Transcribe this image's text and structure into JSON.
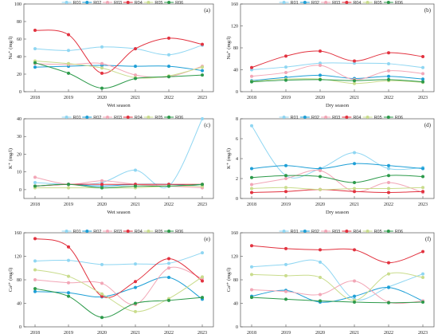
{
  "colors": {
    "R01": "#8fd6f2",
    "R02": "#1e9fd6",
    "R03": "#f2a6b6",
    "R04": "#e2323f",
    "R05": "#c9dc8c",
    "R06": "#2c9a4a"
  },
  "chart_data": [
    {
      "panel": "(a)",
      "type": "line",
      "x": [
        2018,
        2019,
        2020,
        2021,
        2022,
        2023
      ],
      "xlabel": "Wet season",
      "ylabel": "Na⁺ (mg/l)",
      "ylim": [
        0,
        100
      ],
      "yticks": [
        0,
        20,
        40,
        60,
        80,
        100
      ],
      "series": [
        {
          "name": "R01",
          "values": [
            49,
            47,
            51,
            49,
            42,
            53
          ]
        },
        {
          "name": "R02",
          "values": [
            28,
            29,
            30,
            29,
            29,
            24
          ]
        },
        {
          "name": "R03",
          "values": [
            32,
            31,
            32,
            19,
            17,
            29
          ]
        },
        {
          "name": "R04",
          "values": [
            70,
            65,
            21,
            49,
            61,
            54
          ]
        },
        {
          "name": "R05",
          "values": [
            35,
            32,
            27,
            16,
            18,
            28
          ]
        },
        {
          "name": "R06",
          "values": [
            33,
            21,
            4,
            15,
            17,
            19
          ]
        }
      ]
    },
    {
      "panel": "(b)",
      "type": "line",
      "x": [
        2018,
        2019,
        2020,
        2021,
        2022,
        2023
      ],
      "xlabel": "Dry season",
      "ylabel": "Na⁺ (mg/l)",
      "ylim": [
        0,
        160
      ],
      "yticks": [
        0,
        40,
        80,
        120,
        160
      ],
      "series": [
        {
          "name": "R01",
          "values": [
            40,
            45,
            52,
            52,
            51,
            44
          ]
        },
        {
          "name": "R02",
          "values": [
            20,
            26,
            30,
            24,
            28,
            23
          ]
        },
        {
          "name": "R03",
          "values": [
            28,
            35,
            48,
            22,
            38,
            33
          ]
        },
        {
          "name": "R04",
          "values": [
            44,
            65,
            74,
            56,
            71,
            64
          ]
        },
        {
          "name": "R05",
          "values": [
            19,
            23,
            23,
            15,
            20,
            17
          ]
        },
        {
          "name": "R06",
          "values": [
            18,
            21,
            22,
            20,
            22,
            18
          ]
        }
      ]
    },
    {
      "panel": "(c)",
      "type": "line",
      "x": [
        2018,
        2019,
        2020,
        2021,
        2022,
        2023
      ],
      "xlabel": "Wet season",
      "ylabel": "K⁺ (mg/l)",
      "ylim": [
        -5,
        40
      ],
      "yticks": [
        0,
        10,
        20,
        30,
        40
      ],
      "series": [
        {
          "name": "R01",
          "values": [
            4,
            3,
            4,
            11,
            2,
            40
          ]
        },
        {
          "name": "R02",
          "values": [
            2,
            3,
            2,
            3,
            3,
            2
          ]
        },
        {
          "name": "R03",
          "values": [
            7,
            3,
            5,
            3,
            2,
            1
          ]
        },
        {
          "name": "R04",
          "values": [
            2,
            3,
            3,
            3,
            3,
            3
          ]
        },
        {
          "name": "R05",
          "values": [
            1,
            1,
            1,
            1,
            2,
            2
          ]
        },
        {
          "name": "R06",
          "values": [
            2,
            3,
            1,
            2,
            2,
            3
          ]
        }
      ]
    },
    {
      "panel": "(d)",
      "type": "line",
      "x": [
        2018,
        2019,
        2020,
        2021,
        2022,
        2023
      ],
      "xlabel": "Dry season",
      "ylabel": "K⁺ (mg/l)",
      "ylim": [
        0,
        8
      ],
      "yticks": [
        0,
        2,
        4,
        6,
        8
      ],
      "series": [
        {
          "name": "R01",
          "values": [
            7.3,
            2.3,
            3.0,
            4.6,
            3.0,
            3.1
          ]
        },
        {
          "name": "R02",
          "values": [
            3.0,
            3.3,
            3.0,
            3.5,
            3.3,
            3.0
          ]
        },
        {
          "name": "R03",
          "values": [
            1.4,
            2.0,
            2.8,
            0.7,
            1.6,
            0.6
          ]
        },
        {
          "name": "R04",
          "values": [
            0.6,
            0.7,
            0.9,
            0.7,
            0.6,
            0.7
          ]
        },
        {
          "name": "R05",
          "values": [
            1.0,
            1.1,
            0.9,
            1.0,
            1.0,
            1.1
          ]
        },
        {
          "name": "R06",
          "values": [
            2.1,
            2.3,
            2.2,
            1.6,
            2.3,
            2.2
          ]
        }
      ]
    },
    {
      "panel": "(e)",
      "type": "line",
      "x": [
        2018,
        2019,
        2020,
        2021,
        2022,
        2023
      ],
      "xlabel": "Wet season",
      "ylabel": "Ca²⁺ (mg/l)",
      "ylim": [
        0,
        160
      ],
      "yticks": [
        0,
        40,
        80,
        120,
        160
      ],
      "series": [
        {
          "name": "R01",
          "values": [
            112,
            113,
            106,
            107,
            108,
            126
          ]
        },
        {
          "name": "R02",
          "values": [
            60,
            58,
            51,
            67,
            84,
            47
          ]
        },
        {
          "name": "R03",
          "values": [
            80,
            75,
            74,
            38,
            100,
            82
          ]
        },
        {
          "name": "R04",
          "values": [
            150,
            136,
            52,
            77,
            116,
            78
          ]
        },
        {
          "name": "R05",
          "values": [
            97,
            86,
            56,
            26,
            48,
            85
          ]
        },
        {
          "name": "R06",
          "values": [
            65,
            52,
            16,
            40,
            45,
            50
          ]
        }
      ]
    },
    {
      "panel": "(f)",
      "type": "line",
      "x": [
        2018,
        2019,
        2020,
        2021,
        2022,
        2023
      ],
      "xlabel": "Dry season",
      "ylabel": "Ca²⁺ (mg/l)",
      "ylim": [
        0,
        160
      ],
      "yticks": [
        0,
        40,
        80,
        120,
        160
      ],
      "series": [
        {
          "name": "R01",
          "values": [
            102,
            106,
            110,
            47,
            68,
            90
          ]
        },
        {
          "name": "R02",
          "values": [
            52,
            62,
            42,
            52,
            67,
            44
          ]
        },
        {
          "name": "R03",
          "values": [
            63,
            60,
            55,
            78,
            42,
            44
          ]
        },
        {
          "name": "R04",
          "values": [
            138,
            133,
            131,
            131,
            109,
            128
          ]
        },
        {
          "name": "R05",
          "values": [
            89,
            87,
            84,
            45,
            90,
            84
          ]
        },
        {
          "name": "R06",
          "values": [
            50,
            47,
            44,
            42,
            41,
            42
          ]
        }
      ]
    }
  ]
}
